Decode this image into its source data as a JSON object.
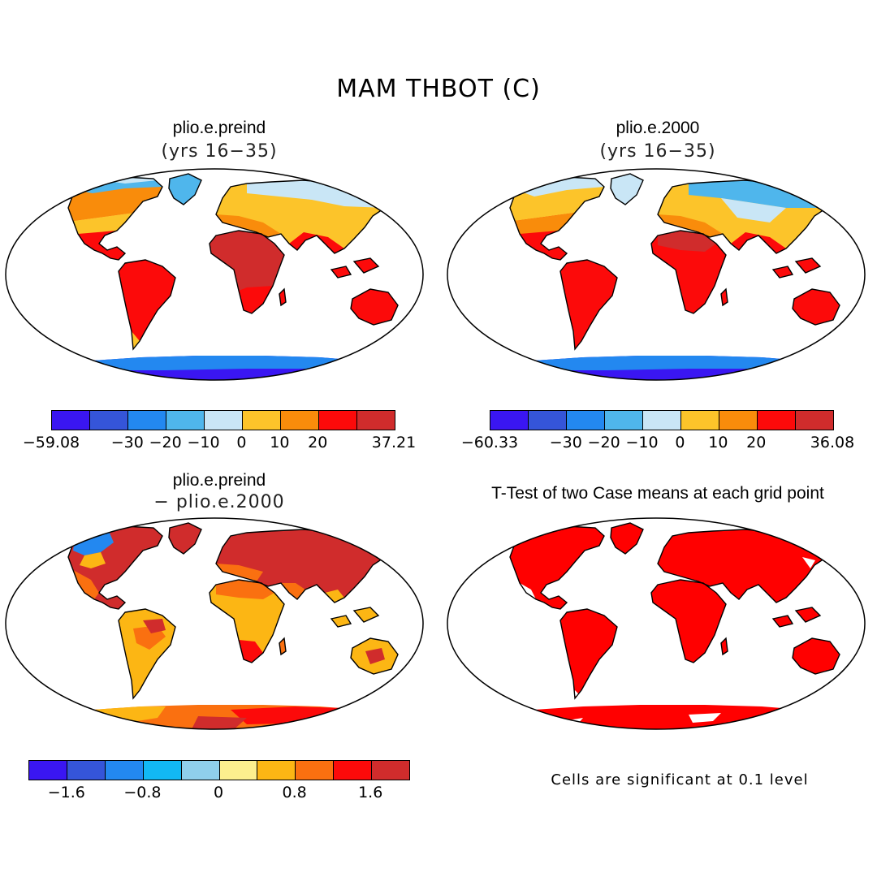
{
  "title": "MAM THBOT (C)",
  "panels": [
    {
      "title": "plio.e.preind",
      "subtitle": "(yrs 16−35)"
    },
    {
      "title": "plio.e.2000",
      "subtitle": "(yrs 16−35)"
    },
    {
      "title": "plio.e.preind",
      "subtitle": "− plio.e.2000"
    },
    {
      "title": "T-Test of two Case means at each grid point",
      "subtitle": ""
    }
  ],
  "note": "Cells are significant at 0.1 level",
  "colors": {
    "abs_scale": [
      "#3a16f2",
      "#3555d9",
      "#2388f0",
      "#4fb6ec",
      "#c9e6f6",
      "#fcc42a",
      "#f98c0b",
      "#fc0a0a",
      "#d02c2c"
    ],
    "diff_scale": [
      "#3a16f2",
      "#3555d9",
      "#2388f0",
      "#12b8f4",
      "#8fcfec",
      "#fcef8e",
      "#fcb614",
      "#fa7010",
      "#fc0a0a",
      "#d02c2c"
    ],
    "ttest": "#ff0000"
  },
  "chart_data": [
    {
      "type": "heatmap",
      "title": "plio.e.preind",
      "subtitle": "(yrs 16−35)",
      "projection": "Robinson",
      "colorbar": {
        "bins": 9,
        "ticks": [
          {
            "label": "−59.08",
            "bin_edge": 0
          },
          {
            "label": "−30",
            "bin_edge": 2
          },
          {
            "label": "−20",
            "bin_edge": 3
          },
          {
            "label": "−10",
            "bin_edge": 4
          },
          {
            "label": "0",
            "bin_edge": 5
          },
          {
            "label": "10",
            "bin_edge": 6
          },
          {
            "label": "20",
            "bin_edge": 7
          },
          {
            "label": "37.21",
            "bin_edge": 9
          }
        ]
      }
    },
    {
      "type": "heatmap",
      "title": "plio.e.2000",
      "subtitle": "(yrs 16−35)",
      "projection": "Robinson",
      "colorbar": {
        "bins": 9,
        "ticks": [
          {
            "label": "−60.33",
            "bin_edge": 0
          },
          {
            "label": "−30",
            "bin_edge": 2
          },
          {
            "label": "−20",
            "bin_edge": 3
          },
          {
            "label": "−10",
            "bin_edge": 4
          },
          {
            "label": "0",
            "bin_edge": 5
          },
          {
            "label": "10",
            "bin_edge": 6
          },
          {
            "label": "20",
            "bin_edge": 7
          },
          {
            "label": "36.08",
            "bin_edge": 9
          }
        ]
      }
    },
    {
      "type": "heatmap",
      "title": "plio.e.preind",
      "subtitle": "− plio.e.2000",
      "projection": "Robinson",
      "colorbar": {
        "bins": 10,
        "ticks": [
          {
            "label": "−1.6",
            "bin_edge": 1
          },
          {
            "label": "−0.8",
            "bin_edge": 3
          },
          {
            "label": "0",
            "bin_edge": 5
          },
          {
            "label": "0.8",
            "bin_edge": 7
          },
          {
            "label": "1.6",
            "bin_edge": 9
          }
        ]
      }
    },
    {
      "type": "heatmap",
      "title": "T-Test of two Case means at each grid point",
      "projection": "Robinson",
      "significance_level": 0.1
    }
  ]
}
